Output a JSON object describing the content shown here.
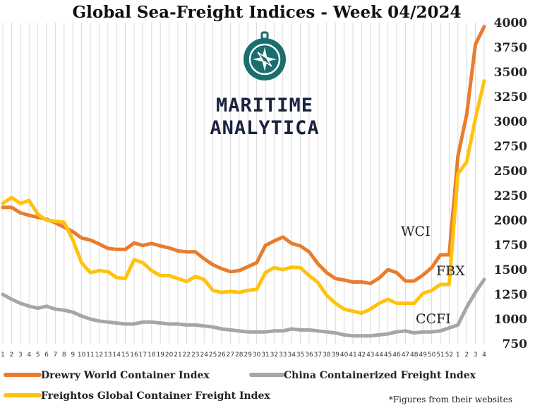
{
  "chart_data": {
    "type": "line",
    "title": "Global Sea-Freight Indices -  Week 04/2024",
    "x_labels": [
      "1",
      "2",
      "3",
      "4",
      "5",
      "6",
      "7",
      "8",
      "9",
      "10",
      "11",
      "12",
      "13",
      "14",
      "15",
      "16",
      "17",
      "18",
      "19",
      "20",
      "21",
      "22",
      "23",
      "24",
      "25",
      "26",
      "27",
      "28",
      "29",
      "30",
      "31",
      "32",
      "33",
      "34",
      "35",
      "36",
      "37",
      "38",
      "39",
      "40",
      "41",
      "42",
      "43",
      "44",
      "45",
      "46",
      "47",
      "48",
      "49",
      "50",
      "51",
      "52",
      "1",
      "2",
      "3",
      "4"
    ],
    "ylim": [
      750,
      4000
    ],
    "y_ticks": [
      "750",
      "1000",
      "1250",
      "1500",
      "1750",
      "2000",
      "2250",
      "2500",
      "2750",
      "3000",
      "3250",
      "3500",
      "3750",
      "4000"
    ],
    "grid": "vertical",
    "series": [
      {
        "name": "Drewry World Container Index",
        "label": "WCI",
        "color": "#E87D2E",
        "values": [
          2130,
          2130,
          2075,
          2050,
          2030,
          2010,
          1975,
          1930,
          1885,
          1820,
          1800,
          1760,
          1715,
          1705,
          1705,
          1770,
          1745,
          1765,
          1740,
          1720,
          1690,
          1680,
          1680,
          1610,
          1550,
          1510,
          1480,
          1490,
          1530,
          1570,
          1745,
          1790,
          1830,
          1765,
          1740,
          1680,
          1560,
          1470,
          1410,
          1395,
          1375,
          1375,
          1360,
          1415,
          1500,
          1470,
          1385,
          1385,
          1445,
          1520,
          1650,
          1650,
          2650,
          3070,
          3780,
          3960
        ]
      },
      {
        "name": "Freightos Global Container Freight Index",
        "label": "FBX",
        "color": "#FFC20E",
        "values": [
          2170,
          2230,
          2170,
          2200,
          2060,
          2000,
          1990,
          1980,
          1800,
          1570,
          1470,
          1490,
          1480,
          1420,
          1410,
          1600,
          1570,
          1490,
          1440,
          1440,
          1410,
          1380,
          1430,
          1400,
          1290,
          1270,
          1280,
          1270,
          1290,
          1300,
          1470,
          1520,
          1500,
          1525,
          1520,
          1440,
          1370,
          1240,
          1160,
          1100,
          1080,
          1060,
          1100,
          1160,
          1200,
          1160,
          1160,
          1160,
          1260,
          1290,
          1350,
          1350,
          2470,
          2590,
          3030,
          3410
        ]
      },
      {
        "name": "China Containerized Freight Index",
        "label": "CCFI",
        "color": "#A6A6A6",
        "values": [
          1250,
          1200,
          1160,
          1130,
          1110,
          1130,
          1100,
          1090,
          1070,
          1030,
          1000,
          980,
          970,
          960,
          950,
          950,
          970,
          970,
          960,
          950,
          950,
          940,
          940,
          930,
          920,
          900,
          890,
          880,
          870,
          870,
          870,
          880,
          880,
          900,
          890,
          890,
          880,
          870,
          860,
          840,
          830,
          830,
          830,
          840,
          850,
          870,
          880,
          860,
          870,
          870,
          880,
          910,
          940,
          1120,
          1270,
          1400
        ]
      }
    ]
  },
  "logo": {
    "line1": "MARITIME",
    "line2": "ANALYTICA",
    "icon": "compass-icon",
    "color": "#1a6e6e"
  },
  "footnote": "*Figures from their websites"
}
